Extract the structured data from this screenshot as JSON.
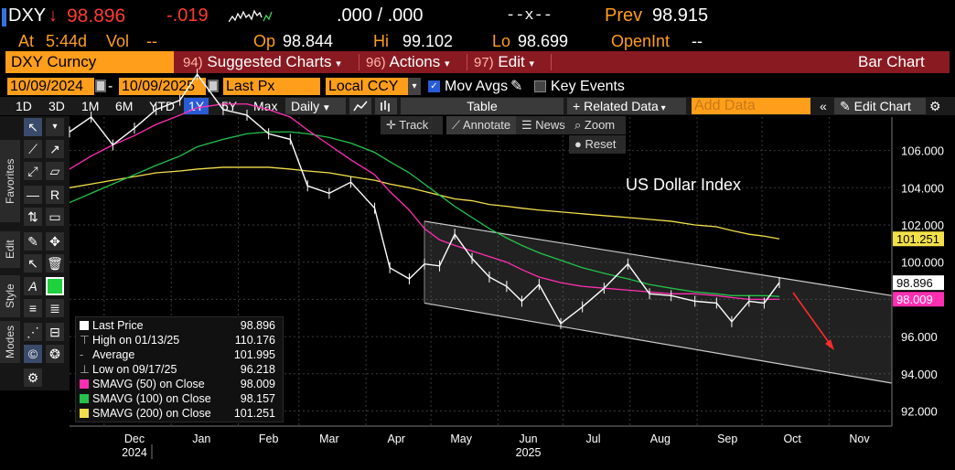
{
  "quote": {
    "ticker": "DXY",
    "arrow": "↓",
    "last": "98.896",
    "change": "-.019",
    "bidask": ".000 / .000",
    "size": "--x--",
    "prev_label": "Prev",
    "prev": "98.915",
    "at_label": "At",
    "time": "5:44d",
    "vol_label": "Vol",
    "vol": "--",
    "open_label": "Op",
    "open": "98.844",
    "high_label": "Hi",
    "high": "99.102",
    "low_label": "Lo",
    "low": "98.699",
    "openint_label": "OpenInt",
    "openint": "--"
  },
  "toolbar": {
    "security": "DXY Curncy",
    "suggested_num": "94)",
    "suggested": "Suggested Charts",
    "actions_num": "96)",
    "actions": "Actions",
    "edit_num": "97)",
    "edit": "Edit",
    "chart_type": "Bar Chart"
  },
  "controls": {
    "start_date": "10/09/2024",
    "end_date": "10/09/2025",
    "field": "Last Px",
    "currency": "Local CCY",
    "mov_avgs": "Mov Avgs",
    "key_events": "Key Events",
    "periods": [
      "1D",
      "3D",
      "1M",
      "6M",
      "YTD",
      "1Y",
      "5Y",
      "Max"
    ],
    "selected_period": "1Y",
    "frequency": "Daily",
    "table": "Table",
    "related_data": "Related Data",
    "add_data": "Add Data",
    "edit_chart": "Edit Chart",
    "track": "Track",
    "annotate": "Annotate",
    "news": "News",
    "zoom": "Zoom",
    "reset": "Reset"
  },
  "side_tabs": [
    "Favorites",
    "Edit",
    "Style",
    "Modes"
  ],
  "icons": [
    "cursor-icon",
    "line-icon",
    "ray-icon",
    "trend-icon",
    "channel-icon",
    "hline-icon",
    "text-icon",
    "fib-icon",
    "rect-icon",
    "pencil-icon",
    "move-icon",
    "select-icon",
    "trash-icon",
    "font-icon",
    "color-icon",
    "linewidth-icon",
    "linestyle-icon",
    "snap-icon",
    "magnet-icon",
    "colors-icon",
    "settings-icon"
  ],
  "chart_data": {
    "type": "line",
    "title": "US Dollar Index",
    "x_ticks": [
      "Dec",
      "Jan",
      "Feb",
      "Mar",
      "Apr",
      "May",
      "Jun",
      "Jul",
      "Aug",
      "Sep",
      "Oct",
      "Nov"
    ],
    "x_years": [
      {
        "label": "2024",
        "under": "Dec"
      },
      {
        "label": "2025",
        "under": "Jun"
      }
    ],
    "y_ticks": [
      "92.000",
      "94.000",
      "96.000",
      "98.000",
      "100.000",
      "102.000",
      "104.000",
      "106.000"
    ],
    "ylim": [
      91.5,
      107.5
    ],
    "x": [
      "2024-11-15",
      "2024-11-25",
      "2024-12-05",
      "2024-12-15",
      "2024-12-25",
      "2025-01-05",
      "2025-01-13",
      "2025-01-25",
      "2025-02-05",
      "2025-02-15",
      "2025-02-25",
      "2025-03-05",
      "2025-03-15",
      "2025-03-25",
      "2025-04-05",
      "2025-04-12",
      "2025-04-21",
      "2025-04-28",
      "2025-05-05",
      "2025-05-12",
      "2025-05-20",
      "2025-05-28",
      "2025-06-05",
      "2025-06-12",
      "2025-06-20",
      "2025-06-30",
      "2025-07-10",
      "2025-07-20",
      "2025-07-31",
      "2025-08-10",
      "2025-08-20",
      "2025-08-31",
      "2025-09-10",
      "2025-09-17",
      "2025-09-25",
      "2025-10-02",
      "2025-10-09"
    ],
    "series": [
      {
        "name": "Last Price",
        "color": "#ffffff",
        "values": [
          107.0,
          107.8,
          106.3,
          107.2,
          108.2,
          108.7,
          110.1,
          108.2,
          107.9,
          106.9,
          106.6,
          104.1,
          103.7,
          104.3,
          102.9,
          99.7,
          99.1,
          99.9,
          99.8,
          101.5,
          100.2,
          99.2,
          98.7,
          97.9,
          98.8,
          96.7,
          97.6,
          98.6,
          99.9,
          98.3,
          98.2,
          97.9,
          97.8,
          96.8,
          97.9,
          97.8,
          98.9
        ]
      },
      {
        "name": "SMAVG (50) on Close",
        "color": "#ff2fb2",
        "values": [
          105.0,
          105.7,
          106.3,
          106.8,
          107.4,
          107.9,
          108.3,
          108.5,
          108.5,
          108.2,
          107.8,
          107.1,
          106.3,
          105.5,
          104.7,
          103.8,
          102.8,
          101.8,
          101.2,
          100.9,
          100.6,
          100.3,
          100.0,
          99.6,
          99.2,
          98.9,
          98.7,
          98.6,
          98.5,
          98.4,
          98.3,
          98.3,
          98.2,
          98.1,
          98.0,
          98.0,
          98.009
        ]
      },
      {
        "name": "SMAVG (100) on Close",
        "color": "#24c24a",
        "values": [
          103.2,
          103.7,
          104.2,
          104.7,
          105.2,
          105.7,
          106.2,
          106.6,
          106.9,
          107.0,
          107.0,
          106.9,
          106.7,
          106.4,
          105.9,
          105.4,
          104.8,
          104.2,
          103.6,
          103.0,
          102.4,
          101.8,
          101.3,
          100.9,
          100.5,
          100.1,
          99.7,
          99.4,
          99.1,
          98.8,
          98.6,
          98.4,
          98.3,
          98.2,
          98.2,
          98.2,
          98.157
        ]
      },
      {
        "name": "SMAVG (200) on Close",
        "color": "#f2e04a",
        "values": [
          104.0,
          104.2,
          104.4,
          104.6,
          104.8,
          104.9,
          105.0,
          105.1,
          105.1,
          105.1,
          105.0,
          104.9,
          104.8,
          104.6,
          104.4,
          104.2,
          104.0,
          103.8,
          103.6,
          103.4,
          103.3,
          103.1,
          103.0,
          102.9,
          102.8,
          102.7,
          102.6,
          102.5,
          102.4,
          102.3,
          102.2,
          102.0,
          101.9,
          101.7,
          101.5,
          101.4,
          101.251
        ]
      }
    ],
    "channel": {
      "upper": [
        [
          "2025-04-28",
          102.2
        ],
        [
          "2025-11-30",
          98.2
        ]
      ],
      "lower": [
        [
          "2025-04-28",
          97.8
        ],
        [
          "2025-11-30",
          93.5
        ]
      ]
    },
    "last_labels": [
      {
        "value": "101.251",
        "color": "#f2e04a"
      },
      {
        "value": "98.896",
        "color": "#ffffff"
      },
      {
        "value": "98.009",
        "color": "#ff2fb2"
      }
    ],
    "legend": [
      {
        "label": "Last Price",
        "value": "98.896",
        "swatch": "#ffffff"
      },
      {
        "label": "High on 01/13/25",
        "value": "110.176",
        "swatch": ""
      },
      {
        "label": "Average",
        "value": "101.995",
        "swatch": ""
      },
      {
        "label": "Low on 09/17/25",
        "value": "96.218",
        "swatch": ""
      },
      {
        "label": "SMAVG (50)  on Close",
        "value": "98.009",
        "swatch": "#ff2fb2"
      },
      {
        "label": "SMAVG (100)  on Close",
        "value": "98.157",
        "swatch": "#24c24a"
      },
      {
        "label": "SMAVG (200)  on Close",
        "value": "101.251",
        "swatch": "#f2e04a"
      }
    ]
  }
}
